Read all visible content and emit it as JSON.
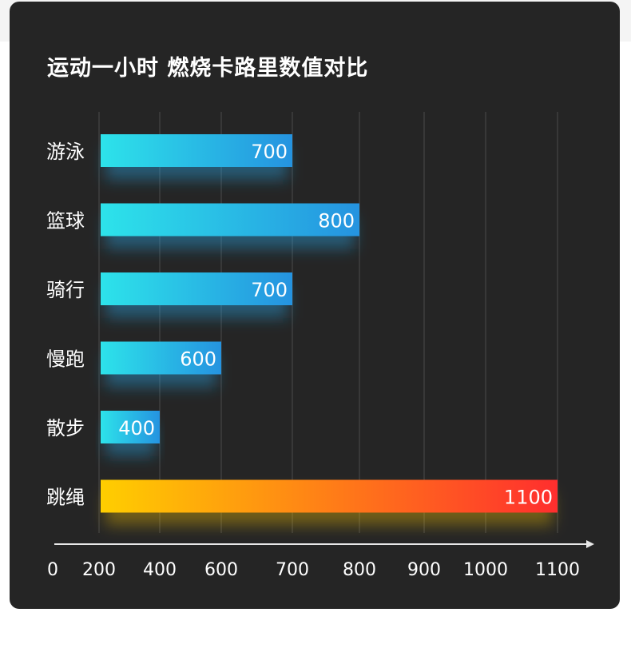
{
  "title": "运动一小时  燃烧卡路里数值对比",
  "chart_data": {
    "type": "bar",
    "orientation": "horizontal",
    "title": "运动一小时  燃烧卡路里数值对比",
    "categories": [
      "游泳",
      "篮球",
      "骑行",
      "慢跑",
      "散步",
      "跳绳"
    ],
    "values": [
      700,
      800,
      700,
      600,
      400,
      1100
    ],
    "value_labels": [
      "700",
      "800",
      "700",
      "600",
      "400",
      "1100"
    ],
    "x_ticks": [
      "0",
      "200",
      "400",
      "600",
      "700",
      "800",
      "900",
      "1000",
      "1100"
    ],
    "grid": true,
    "colors": {
      "blue_start": "#2de3ea",
      "blue_end": "#2593e0",
      "highlight_start": "#ffce00",
      "highlight_end": "#ff2e2e",
      "highlight_category": "跳绳"
    }
  }
}
